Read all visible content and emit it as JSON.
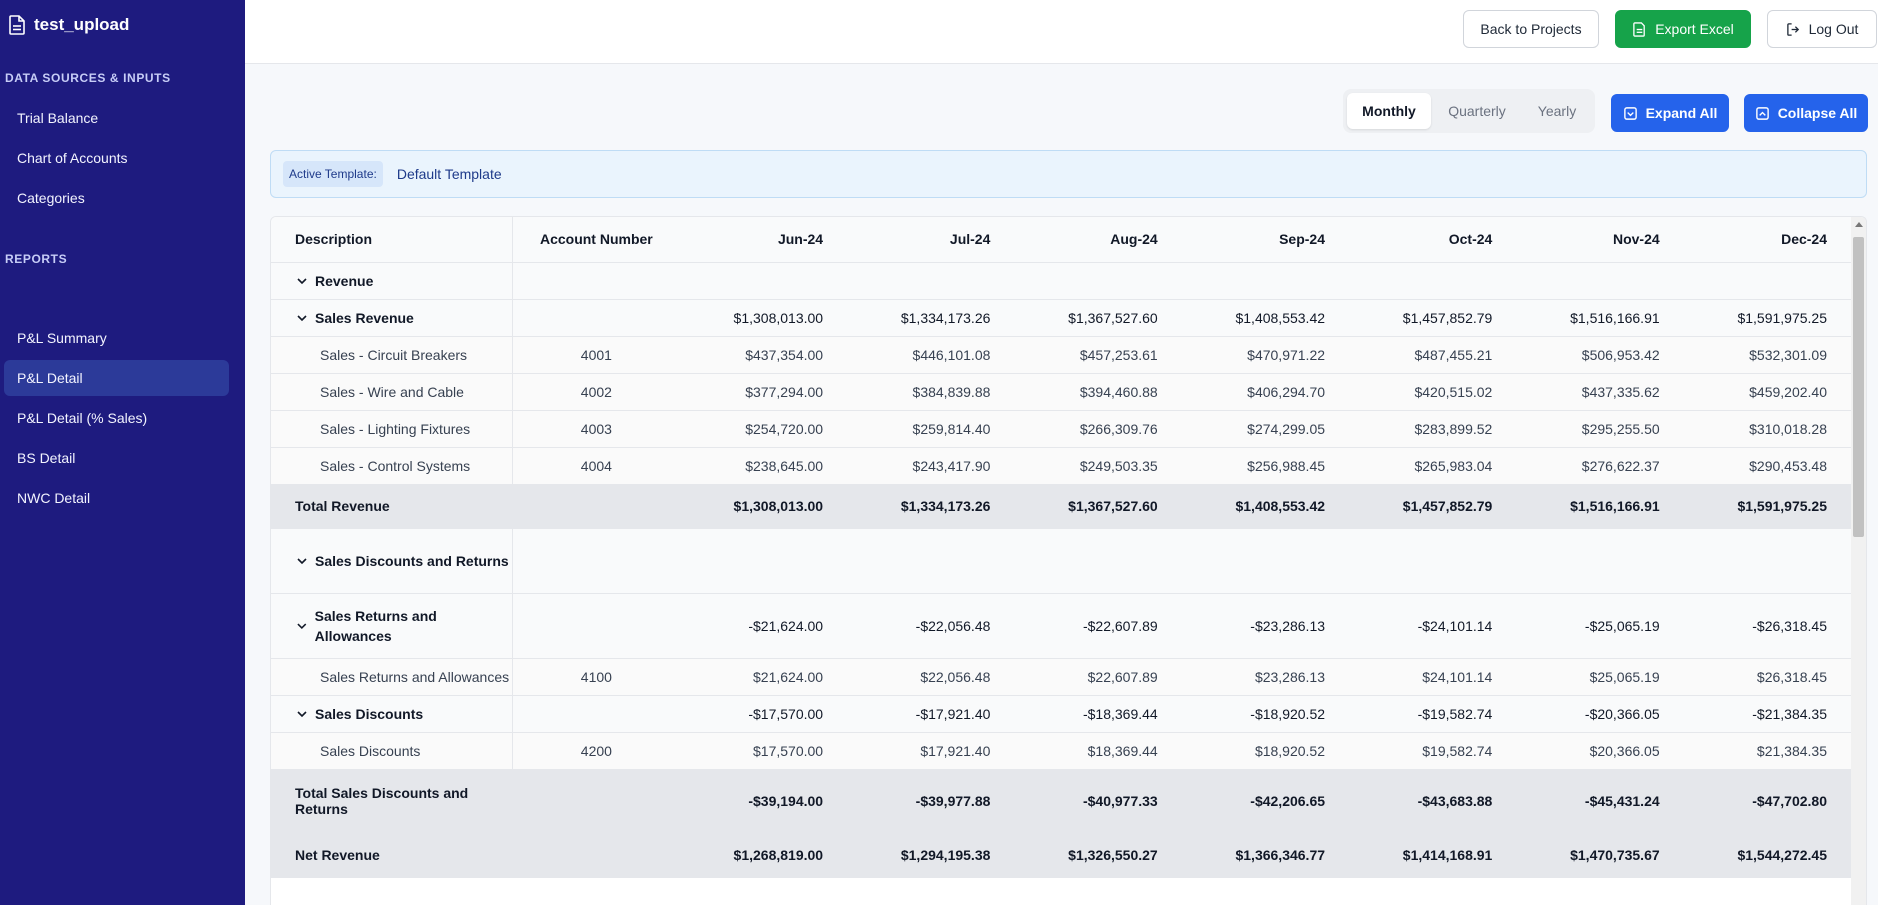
{
  "sidebar": {
    "title": "test_upload",
    "sections": [
      {
        "header": "DATA SOURCES & INPUTS",
        "items": [
          "Trial Balance",
          "Chart of Accounts",
          "Categories"
        ]
      },
      {
        "header": "REPORTS",
        "items": [
          "P&L Summary",
          "P&L Detail",
          "P&L Detail (% Sales)",
          "BS Detail",
          "NWC Detail"
        ]
      }
    ],
    "active_item": "P&L Detail"
  },
  "topbar": {
    "back_label": "Back to Projects",
    "export_label": "Export Excel",
    "logout_label": "Log Out"
  },
  "period": {
    "options": [
      "Monthly",
      "Quarterly",
      "Yearly"
    ],
    "selected": "Monthly"
  },
  "actions": {
    "expand_label": "Expand All",
    "collapse_label": "Collapse All"
  },
  "template": {
    "label": "Active Template:",
    "value": "Default Template"
  },
  "colors": {
    "sidebar": "#1e1b7f",
    "primary": "#2563eb",
    "success": "#16a34a"
  },
  "table": {
    "headers": [
      "Description",
      "Account Number",
      "Jun-24",
      "Jul-24",
      "Aug-24",
      "Sep-24",
      "Oct-24",
      "Nov-24",
      "Dec-24"
    ],
    "rows": [
      {
        "type": "group",
        "chev": true,
        "desc": "Revenue",
        "acc": "",
        "values": []
      },
      {
        "type": "group",
        "chev": true,
        "desc": "Sales Revenue",
        "acc": "",
        "values": [
          "$1,308,013.00",
          "$1,334,173.26",
          "$1,367,527.60",
          "$1,408,553.42",
          "$1,457,852.79",
          "$1,516,166.91",
          "$1,591,975.25"
        ]
      },
      {
        "type": "detail",
        "desc": "Sales - Circuit Breakers",
        "acc": "4001",
        "values": [
          "$437,354.00",
          "$446,101.08",
          "$457,253.61",
          "$470,971.22",
          "$487,455.21",
          "$506,953.42",
          "$532,301.09"
        ]
      },
      {
        "type": "detail",
        "desc": "Sales - Wire and Cable",
        "acc": "4002",
        "values": [
          "$377,294.00",
          "$384,839.88",
          "$394,460.88",
          "$406,294.70",
          "$420,515.02",
          "$437,335.62",
          "$459,202.40"
        ]
      },
      {
        "type": "detail",
        "desc": "Sales - Lighting Fixtures",
        "acc": "4003",
        "values": [
          "$254,720.00",
          "$259,814.40",
          "$266,309.76",
          "$274,299.05",
          "$283,899.52",
          "$295,255.50",
          "$310,018.28"
        ]
      },
      {
        "type": "detail",
        "desc": "Sales - Control Systems",
        "acc": "4004",
        "values": [
          "$238,645.00",
          "$243,417.90",
          "$249,503.35",
          "$256,988.45",
          "$265,983.04",
          "$276,622.37",
          "$290,453.48"
        ]
      },
      {
        "type": "total",
        "desc": "Total Revenue",
        "acc": "",
        "values": [
          "$1,308,013.00",
          "$1,334,173.26",
          "$1,367,527.60",
          "$1,408,553.42",
          "$1,457,852.79",
          "$1,516,166.91",
          "$1,591,975.25"
        ]
      },
      {
        "type": "group",
        "tall": true,
        "chev": true,
        "desc": "Sales Discounts and Returns",
        "acc": "",
        "values": []
      },
      {
        "type": "group",
        "tall": true,
        "chev": true,
        "desc": "Sales Returns and Allowances",
        "acc": "",
        "values": [
          "-$21,624.00",
          "-$22,056.48",
          "-$22,607.89",
          "-$23,286.13",
          "-$24,101.14",
          "-$25,065.19",
          "-$26,318.45"
        ]
      },
      {
        "type": "detail",
        "desc": "Sales Returns and Allowances",
        "acc": "4100",
        "values": [
          "$21,624.00",
          "$22,056.48",
          "$22,607.89",
          "$23,286.13",
          "$24,101.14",
          "$25,065.19",
          "$26,318.45"
        ]
      },
      {
        "type": "group",
        "chev": true,
        "desc": "Sales Discounts",
        "acc": "",
        "values": [
          "-$17,570.00",
          "-$17,921.40",
          "-$18,369.44",
          "-$18,920.52",
          "-$19,582.74",
          "-$20,366.05",
          "-$21,384.35"
        ]
      },
      {
        "type": "detail",
        "desc": "Sales Discounts",
        "acc": "4200",
        "values": [
          "$17,570.00",
          "$17,921.40",
          "$18,369.44",
          "$18,920.52",
          "$19,582.74",
          "$20,366.05",
          "$21,384.35"
        ]
      },
      {
        "type": "total",
        "tall": true,
        "desc": "Total Sales Discounts and Returns",
        "acc": "",
        "values": [
          "-$39,194.00",
          "-$39,977.88",
          "-$40,977.33",
          "-$42,206.65",
          "-$43,683.88",
          "-$45,431.24",
          "-$47,702.80"
        ]
      },
      {
        "type": "total",
        "desc": "Net Revenue",
        "acc": "",
        "values": [
          "$1,268,819.00",
          "$1,294,195.38",
          "$1,326,550.27",
          "$1,366,346.77",
          "$1,414,168.91",
          "$1,470,735.67",
          "$1,544,272.45"
        ]
      }
    ]
  }
}
